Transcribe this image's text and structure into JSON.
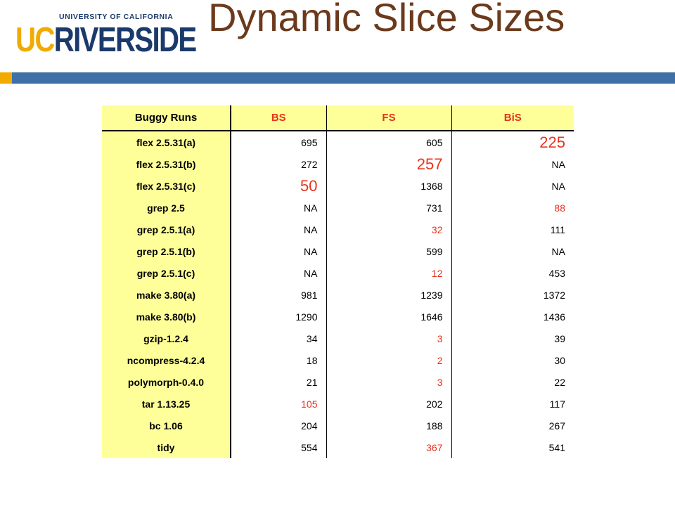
{
  "logo": {
    "top_text": "UNIVERSITY OF CALIFORNIA",
    "uc": "UC",
    "riverside": "RIVERSIDE",
    "colors": {
      "gold": "#f1ab00",
      "blue": "#1a3a6b"
    }
  },
  "title": "Dynamic Slice Sizes",
  "table": {
    "headers": [
      "Buggy Runs",
      "BS",
      "FS",
      "BiS"
    ],
    "rows": [
      {
        "name": "flex 2.5.31(a)",
        "bs": "695",
        "fs": "605",
        "bis": "225",
        "best": "bis",
        "emphasis": "large"
      },
      {
        "name": "flex 2.5.31(b)",
        "bs": "272",
        "fs": "257",
        "bis": "NA",
        "best": "fs",
        "emphasis": "large"
      },
      {
        "name": "flex 2.5.31(c)",
        "bs": "50",
        "fs": "1368",
        "bis": "NA",
        "best": "bs",
        "emphasis": "large"
      },
      {
        "name": "grep 2.5",
        "bs": "NA",
        "fs": "731",
        "bis": "88",
        "best": "bis"
      },
      {
        "name": "grep 2.5.1(a)",
        "bs": "NA",
        "fs": "32",
        "bis": "111",
        "best": "fs"
      },
      {
        "name": "grep 2.5.1(b)",
        "bs": "NA",
        "fs": "599",
        "bis": "NA",
        "best": ""
      },
      {
        "name": "grep 2.5.1(c)",
        "bs": "NA",
        "fs": "12",
        "bis": "453",
        "best": "fs"
      },
      {
        "name": "make 3.80(a)",
        "bs": "981",
        "fs": "1239",
        "bis": "1372",
        "best": ""
      },
      {
        "name": "make 3.80(b)",
        "bs": "1290",
        "fs": "1646",
        "bis": "1436",
        "best": ""
      },
      {
        "name": "gzip-1.2.4",
        "bs": "34",
        "fs": "3",
        "bis": "39",
        "best": "fs"
      },
      {
        "name": "ncompress-4.2.4",
        "bs": "18",
        "fs": "2",
        "bis": "30",
        "best": "fs"
      },
      {
        "name": "polymorph-0.4.0",
        "bs": "21",
        "fs": "3",
        "bis": "22",
        "best": "fs"
      },
      {
        "name": "tar 1.13.25",
        "bs": "105",
        "fs": "202",
        "bis": "117",
        "best": "bs"
      },
      {
        "name": "bc 1.06",
        "bs": "204",
        "fs": "188",
        "bis": "267",
        "best": ""
      },
      {
        "name": "tidy",
        "bs": "554",
        "fs": "367",
        "bis": "541",
        "best": "fs"
      }
    ]
  },
  "colors": {
    "header_bg": "#ffff99",
    "highlight": "#e8321c",
    "title": "#6b3a1c",
    "band": "#3e6fa6"
  }
}
